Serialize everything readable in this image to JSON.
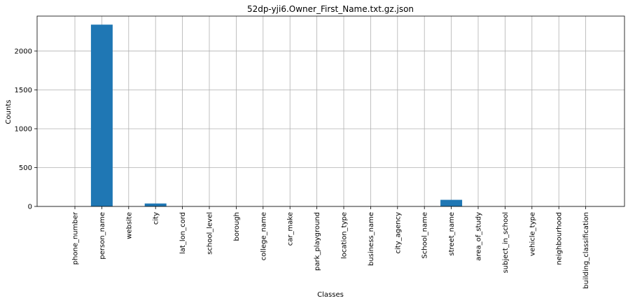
{
  "chart_data": {
    "type": "bar",
    "title": "52dp-yji6.Owner_First_Name.txt.gz.json",
    "xlabel": "Classes",
    "ylabel": "Counts",
    "categories": [
      "phone_number",
      "person_name",
      "website",
      "city",
      "lat_lon_cord",
      "school_level",
      "borough",
      "college_name",
      "car_make",
      "park_playground",
      "location_type",
      "business_name",
      "city_agency",
      "School_name",
      "street_name",
      "area_of_study",
      "subject_in_school",
      "vehicle_type",
      "neighbourhood",
      "building_classification"
    ],
    "values": [
      0,
      2340,
      0,
      38,
      0,
      0,
      0,
      0,
      0,
      0,
      0,
      0,
      0,
      0,
      85,
      0,
      0,
      0,
      0,
      0
    ],
    "ylim": [
      0,
      2450
    ],
    "yticks": [
      0,
      500,
      1000,
      1500,
      2000
    ],
    "grid": true,
    "bar_color": "#1f77b4"
  }
}
